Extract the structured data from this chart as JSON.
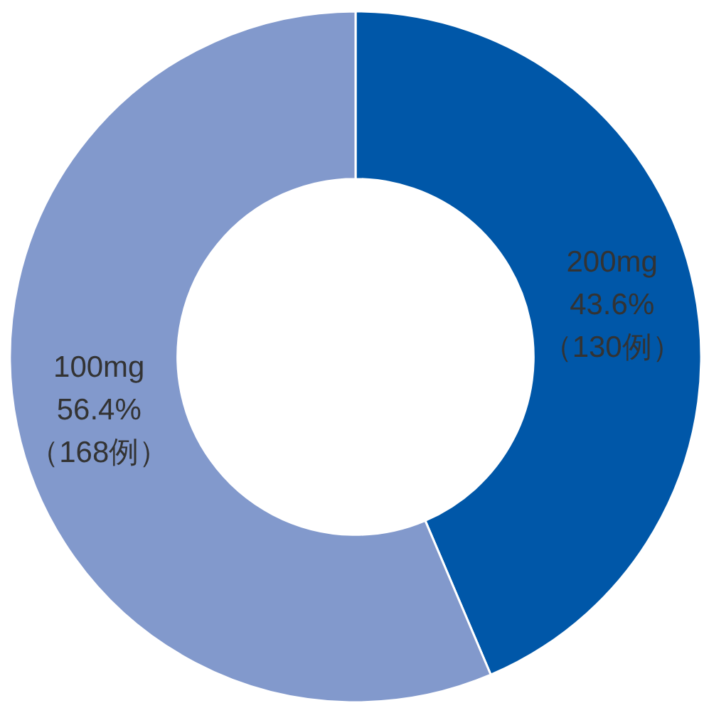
{
  "chart_data": {
    "type": "donut",
    "categories": [
      "200mg",
      "100mg"
    ],
    "values": [
      43.6,
      56.4
    ],
    "colors": [
      "#0057a8",
      "#8299cc"
    ],
    "value_labels": [
      "43.6%\n（130例）",
      "56.4%\n（168例）"
    ]
  }
}
